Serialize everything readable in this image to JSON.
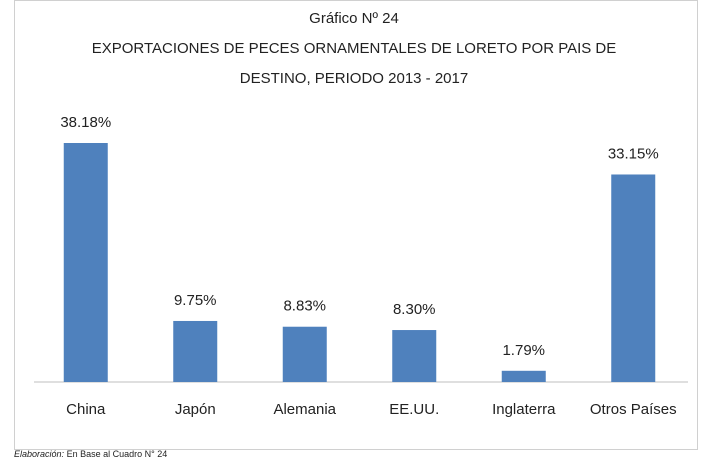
{
  "chart_data": {
    "type": "bar",
    "title": "Gráfico Nº 24",
    "subtitle": "EXPORTACIONES DE PECES ORNAMENTALES DE LORETO POR PAIS DE DESTINO, PERIODO 2013 - 2017",
    "categories": [
      "China",
      "Japón",
      "Alemania",
      "EE.UU.",
      "Inglaterra",
      "Otros Países"
    ],
    "values": [
      38.18,
      9.75,
      8.83,
      8.3,
      1.79,
      33.15
    ],
    "value_labels": [
      "38.18%",
      "9.75%",
      "8.83%",
      "8.30%",
      "1.79%",
      "33.15%"
    ],
    "color": "#4f81bd",
    "note": {
      "label": "Elaboración:",
      "text": "En Base al Cuadro N° 24"
    }
  }
}
